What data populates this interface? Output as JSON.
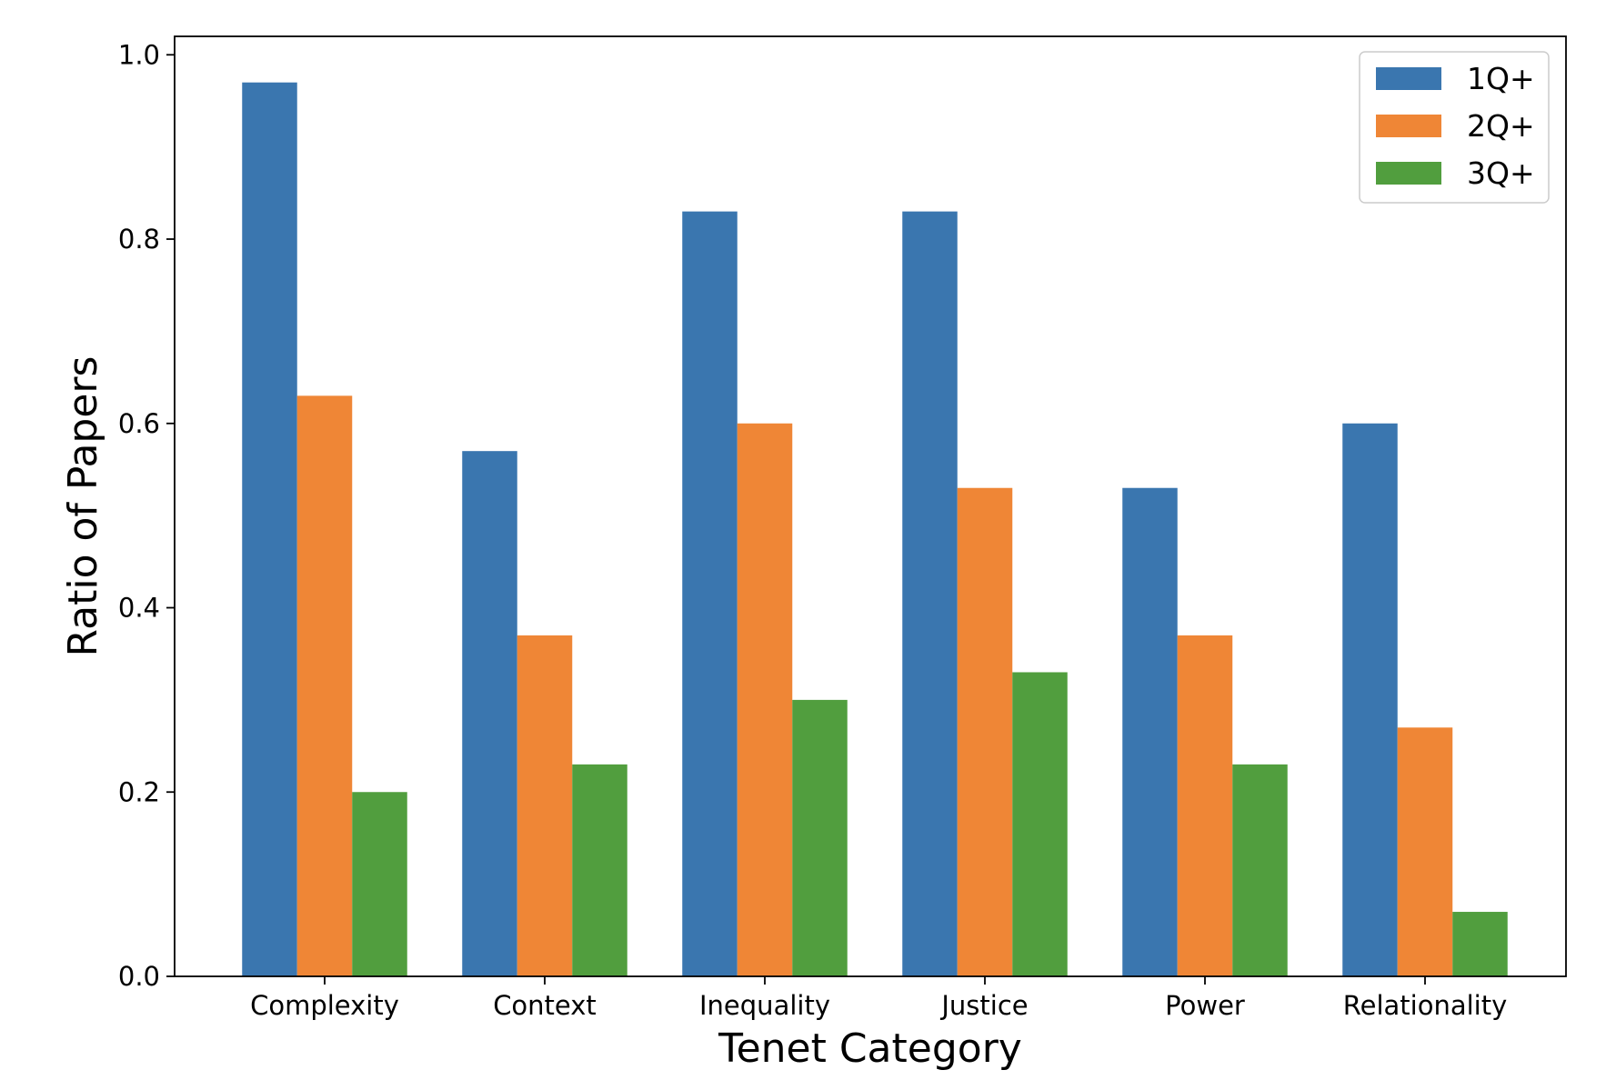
{
  "chart_data": {
    "type": "bar",
    "title": "",
    "xlabel": "Tenet Category",
    "ylabel": "Ratio of Papers",
    "categories": [
      "Complexity",
      "Context",
      "Inequality",
      "Justice",
      "Power",
      "Relationality"
    ],
    "series": [
      {
        "name": "1Q+",
        "color": "#3a76af",
        "values": [
          0.97,
          0.57,
          0.83,
          0.83,
          0.53,
          0.6
        ]
      },
      {
        "name": "2Q+",
        "color": "#ef8636",
        "values": [
          0.63,
          0.37,
          0.6,
          0.53,
          0.37,
          0.27
        ]
      },
      {
        "name": "3Q+",
        "color": "#519e3e",
        "values": [
          0.2,
          0.23,
          0.3,
          0.33,
          0.23,
          0.07
        ]
      }
    ],
    "ylim": [
      0,
      1.02
    ],
    "yticks": [
      0.0,
      0.2,
      0.4,
      0.6,
      0.8,
      1.0
    ],
    "ytick_labels": [
      "0.0",
      "0.2",
      "0.4",
      "0.6",
      "0.8",
      "1.0"
    ],
    "grid": false,
    "legend": {
      "placement": "top-right"
    }
  }
}
